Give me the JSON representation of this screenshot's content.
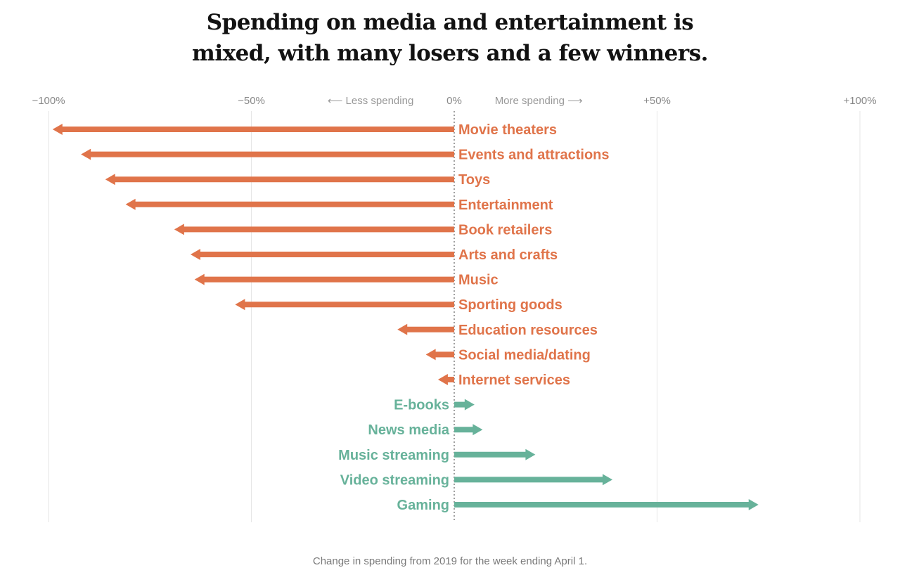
{
  "title_lines": [
    "Spending on media and entertainment is",
    "mixed, with many losers and a few winners."
  ],
  "caption": "Change in spending from 2019 for the week ending April 1.",
  "colors": {
    "negative": "#e0744a",
    "positive": "#67b29a",
    "gridline": "#e6e6e6",
    "zero_line": "#777777"
  },
  "chart_data": {
    "type": "bar",
    "orientation": "horizontal",
    "xlabel": "",
    "ylabel": "",
    "xlim": [
      -100,
      100
    ],
    "x_ticks": [
      {
        "value": -100,
        "label": "−100%"
      },
      {
        "value": -50,
        "label": "−50%"
      },
      {
        "value": 0,
        "label": "0%"
      },
      {
        "value": 50,
        "label": "+50%"
      },
      {
        "value": 100,
        "label": "+100%"
      }
    ],
    "direction_labels": {
      "negative": "⟵ Less spending",
      "positive": "More spending ⟶"
    },
    "grid": true,
    "categories": [
      "Movie theaters",
      "Events and attractions",
      "Toys",
      "Entertainment",
      "Book retailers",
      "Arts and crafts",
      "Music",
      "Sporting goods",
      "Education resources",
      "Social media/dating",
      "Internet services",
      "E-books",
      "News media",
      "Music streaming",
      "Video streaming",
      "Gaming"
    ],
    "values": [
      -99,
      -92,
      -86,
      -81,
      -69,
      -65,
      -64,
      -54,
      -14,
      -7,
      -4,
      5,
      7,
      20,
      39,
      75
    ]
  }
}
